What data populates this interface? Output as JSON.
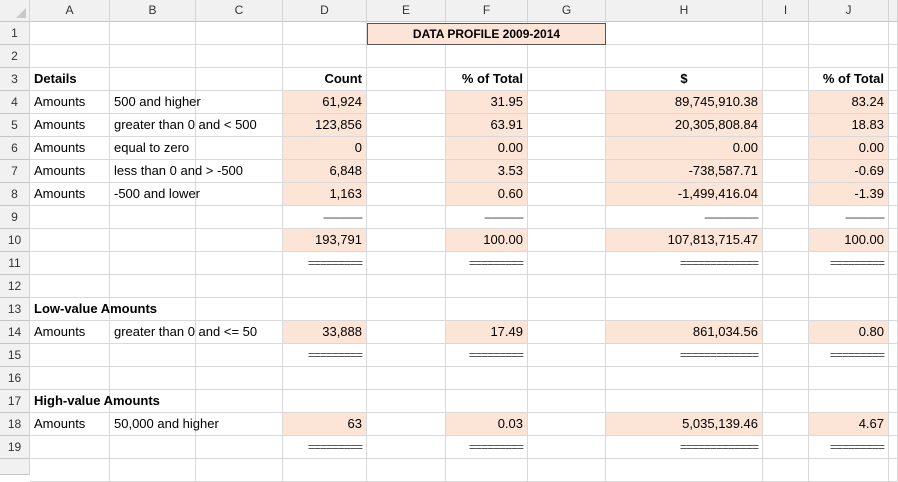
{
  "columns": [
    "A",
    "B",
    "C",
    "D",
    "E",
    "F",
    "G",
    "H",
    "I",
    "J"
  ],
  "rows": [
    "1",
    "2",
    "3",
    "4",
    "5",
    "6",
    "7",
    "8",
    "9",
    "10",
    "11",
    "12",
    "13",
    "14",
    "15",
    "16",
    "17",
    "18",
    "19"
  ],
  "title": "DATA PROFILE 2009-2014",
  "headers": {
    "details": "Details",
    "count": "Count",
    "pct_total_1": "% of Total",
    "dollar": "$",
    "pct_total_2": "% of Total"
  },
  "details": [
    {
      "label": "Amounts",
      "range": "500 and higher",
      "count": "61,924",
      "pct1": "31.95",
      "amount": "89,745,910.38",
      "pct2": "83.24"
    },
    {
      "label": "Amounts",
      "range": "greater than 0 and < 500",
      "count": "123,856",
      "pct1": "63.91",
      "amount": "20,305,808.84",
      "pct2": "18.83"
    },
    {
      "label": "Amounts",
      "range": "equal to zero",
      "count": "0",
      "pct1": "0.00",
      "amount": "0.00",
      "pct2": "0.00"
    },
    {
      "label": "Amounts",
      "range": "less than 0 and > -500",
      "count": "6,848",
      "pct1": "3.53",
      "amount": "-738,587.71",
      "pct2": "-0.69"
    },
    {
      "label": "Amounts",
      "range": "-500 and lower",
      "count": "1,163",
      "pct1": "0.60",
      "amount": "-1,499,416.04",
      "pct2": "-1.39"
    }
  ],
  "separators": {
    "single_count": "-------------",
    "single_pct": "-------------",
    "single_amount": "------------------",
    "single_pct2": "-------------",
    "double_count": "=========",
    "double_pct": "=========",
    "double_amount": "=============",
    "double_pct2": "========="
  },
  "totals": {
    "count": "193,791",
    "pct1": "100.00",
    "amount": "107,813,715.47",
    "pct2": "100.00"
  },
  "low_value": {
    "heading": "Low-value Amounts",
    "label": "Amounts",
    "range": "greater than 0 and <= 50",
    "count": "33,888",
    "pct1": "17.49",
    "amount": "861,034.56",
    "pct2": "0.80"
  },
  "high_value": {
    "heading": "High-value Amounts",
    "label": "Amounts",
    "range": "50,000 and higher",
    "count": "63",
    "pct1": "0.03",
    "amount": "5,035,139.46",
    "pct2": "4.67"
  },
  "colors": {
    "fill": "#fce4d6",
    "header_bg": "#f1f1f1",
    "grid": "#d9d9d9"
  }
}
